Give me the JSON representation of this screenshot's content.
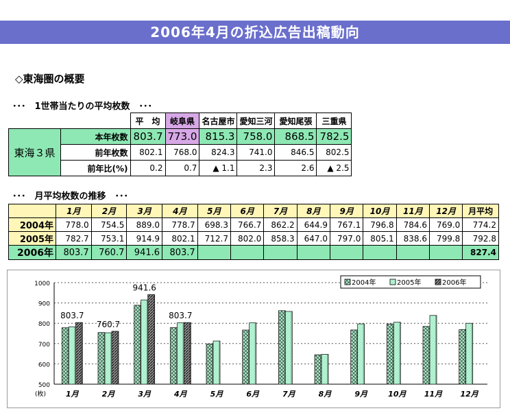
{
  "page_title": "2006年4月の折込広告出稿動向",
  "section_heading": "◇東海圏の概要",
  "subsection1": "･･･　1世帯当たりの平均枚数　･･･",
  "subsection2": "･･･　月平均枚数の推移　･･･",
  "table1": {
    "region": "東海３県",
    "headers": [
      "平　均",
      "岐阜県",
      "名古屋市",
      "愛知三河",
      "愛知尾張",
      "三重県"
    ],
    "rows": [
      {
        "label": "本年枚数",
        "values": [
          "803.7",
          "773.0",
          "815.3",
          "758.0",
          "868.5",
          "782.5"
        ]
      },
      {
        "label": "前年枚数",
        "values": [
          "802.1",
          "768.0",
          "824.3",
          "741.0",
          "846.5",
          "802.5"
        ]
      },
      {
        "label": "前年比(%)",
        "values": [
          "0.2",
          "0.7",
          "▲ 1.1",
          "2.3",
          "2.6",
          "▲ 2.5"
        ]
      }
    ]
  },
  "table2": {
    "months": [
      "1月",
      "2月",
      "3月",
      "4月",
      "5月",
      "6月",
      "7月",
      "8月",
      "9月",
      "10月",
      "11月",
      "12月"
    ],
    "avg_header": "月平均",
    "rows": [
      {
        "year": "2004年",
        "values": [
          "778.0",
          "754.5",
          "889.0",
          "778.7",
          "698.3",
          "766.7",
          "862.2",
          "644.9",
          "767.1",
          "796.8",
          "784.6",
          "769.0"
        ],
        "avg": "774.2"
      },
      {
        "year": "2005年",
        "values": [
          "782.7",
          "753.1",
          "914.9",
          "802.1",
          "712.7",
          "802.0",
          "858.3",
          "647.0",
          "797.0",
          "805.1",
          "838.6",
          "799.8"
        ],
        "avg": "792.8"
      },
      {
        "year": "2006年",
        "values": [
          "803.7",
          "760.7",
          "941.6",
          "803.7",
          "",
          "",
          "",
          "",
          "",
          "",
          "",
          ""
        ],
        "avg": "827.4"
      }
    ]
  },
  "chart_data": {
    "type": "bar",
    "categories": [
      "1月",
      "2月",
      "3月",
      "4月",
      "5月",
      "6月",
      "7月",
      "8月",
      "9月",
      "10月",
      "11月",
      "12月"
    ],
    "series": [
      {
        "name": "2004年",
        "values": [
          778.0,
          754.5,
          889.0,
          778.7,
          698.3,
          766.7,
          862.2,
          644.9,
          767.1,
          796.8,
          784.6,
          769.0
        ]
      },
      {
        "name": "2005年",
        "values": [
          782.7,
          753.1,
          914.9,
          802.1,
          712.7,
          802.0,
          858.3,
          647.0,
          797.0,
          805.1,
          838.6,
          799.8
        ]
      },
      {
        "name": "2006年",
        "values": [
          803.7,
          760.7,
          941.6,
          803.7,
          null,
          null,
          null,
          null,
          null,
          null,
          null,
          null
        ]
      }
    ],
    "data_labels": [
      "803.7",
      "760.7",
      "941.6",
      "803.7"
    ],
    "yticks": [
      "1000",
      "900",
      "800",
      "700",
      "600",
      "500"
    ],
    "y_unit": "(枚)",
    "ylim": [
      500,
      1000
    ],
    "legend_position": "top-right",
    "grid": true,
    "colors": {
      "bar_2004": "#a8f0c8",
      "bar_2005": "#b8f5d6",
      "bar_2006": "#555555"
    }
  }
}
